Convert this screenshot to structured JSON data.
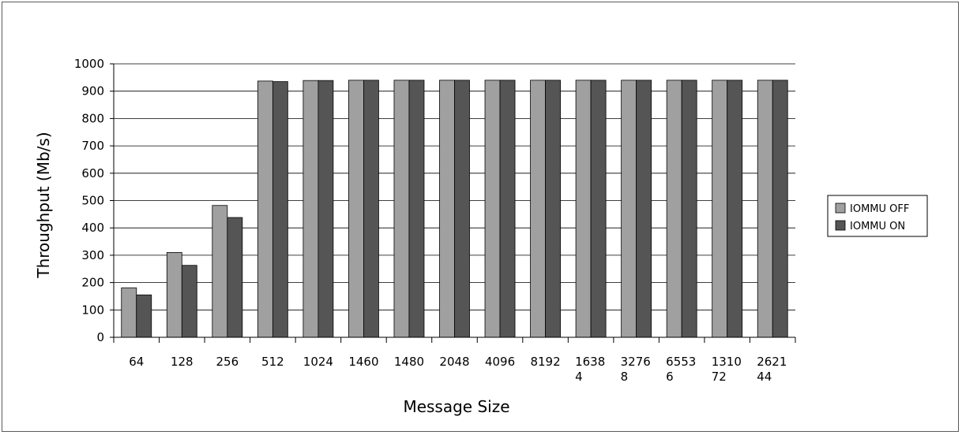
{
  "chart_data": {
    "type": "bar",
    "title": "",
    "xlabel": "Message Size",
    "ylabel": "Throughput (Mb/s)",
    "ylim": [
      0,
      1000
    ],
    "yticks": [
      0,
      100,
      200,
      300,
      400,
      500,
      600,
      700,
      800,
      900,
      1000
    ],
    "grid": true,
    "legend_position": "right",
    "categories": [
      [
        "64"
      ],
      [
        "128"
      ],
      [
        "256"
      ],
      [
        "512"
      ],
      [
        "1024"
      ],
      [
        "1460"
      ],
      [
        "1480"
      ],
      [
        "2048"
      ],
      [
        "4096"
      ],
      [
        "8192"
      ],
      [
        "1638",
        "4"
      ],
      [
        "3276",
        "8"
      ],
      [
        "6553",
        "6"
      ],
      [
        "1310",
        "72"
      ],
      [
        "2621",
        "44"
      ]
    ],
    "series": [
      {
        "name": "IOMMU OFF",
        "color": "#a0a0a0",
        "values": [
          181,
          310,
          482,
          937,
          939,
          940,
          940,
          940,
          940,
          940,
          940,
          940,
          940,
          940,
          940
        ]
      },
      {
        "name": "IOMMU ON",
        "color": "#555555",
        "values": [
          155,
          263,
          438,
          935,
          939,
          940,
          940,
          940,
          940,
          940,
          940,
          940,
          940,
          940,
          940
        ]
      }
    ]
  }
}
